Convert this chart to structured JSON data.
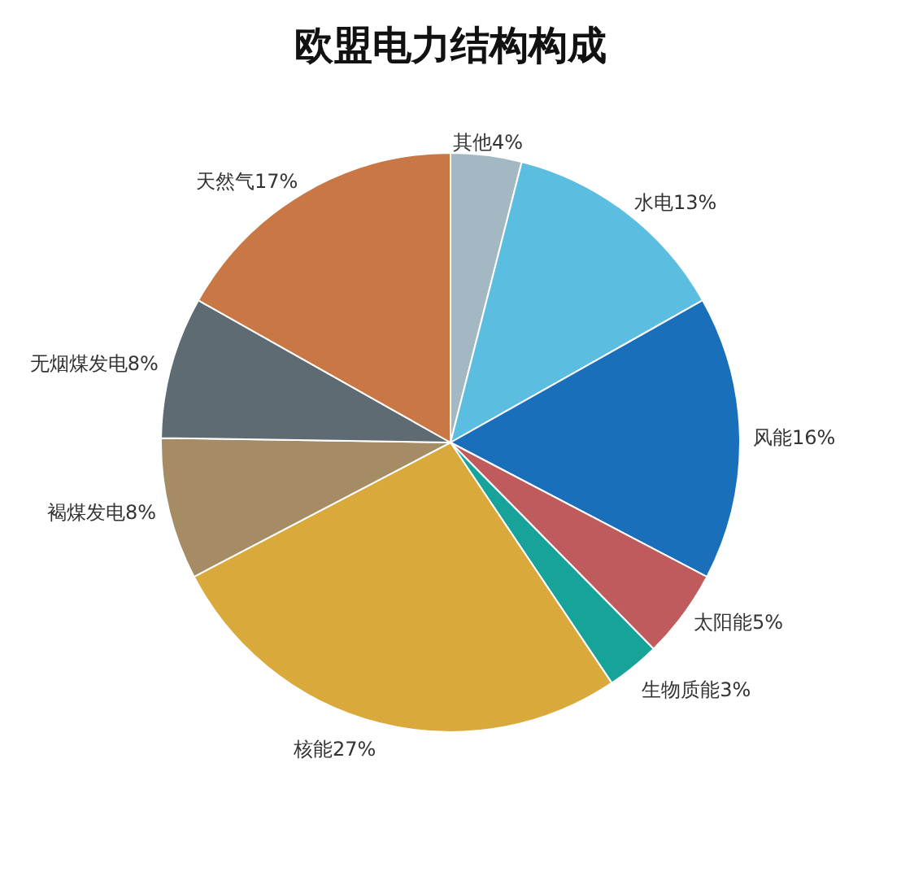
{
  "chart_data": {
    "type": "pie",
    "title": "欧盟电力结构构成",
    "categories": [
      "其他",
      "水电",
      "风能",
      "太阳能",
      "生物质能",
      "核能",
      "褐煤发电",
      "无烟煤发电",
      "天然气"
    ],
    "values": [
      4,
      13,
      16,
      5,
      3,
      27,
      8,
      8,
      17
    ],
    "value_labels": [
      "4%",
      "13%",
      "16%",
      "5%",
      "3%",
      "27%",
      "8%",
      "8%",
      "17%"
    ],
    "colors": [
      "#a3b8c2",
      "#5bbde0",
      "#1a6fbb",
      "#c05b5d",
      "#17a39a",
      "#d9a93c",
      "#a68c64",
      "#5f6b72",
      "#c97744"
    ],
    "legend": false
  }
}
